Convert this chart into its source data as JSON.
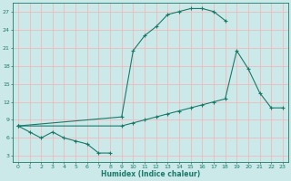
{
  "xlabel": "Humidex (Indice chaleur)",
  "xlim": [
    -0.5,
    23.5
  ],
  "ylim": [
    2.0,
    28.5
  ],
  "yticks": [
    3,
    6,
    9,
    12,
    15,
    18,
    21,
    24,
    27
  ],
  "xticks": [
    0,
    1,
    2,
    3,
    4,
    5,
    6,
    7,
    8,
    9,
    10,
    11,
    12,
    13,
    14,
    15,
    16,
    17,
    18,
    19,
    20,
    21,
    22,
    23
  ],
  "bg_color": "#cce9e9",
  "grid_color": "#f0b8b8",
  "line_color": "#1a7a6a",
  "figsize": [
    3.2,
    2.0
  ],
  "dpi": 100,
  "line1_x": [
    0,
    1,
    2,
    3,
    4,
    5,
    6,
    7,
    8
  ],
  "line1_y": [
    8,
    7,
    6,
    7,
    6,
    5.5,
    5,
    3.5,
    3.5
  ],
  "line2_x": [
    0,
    9,
    10,
    11,
    12,
    13,
    14,
    15,
    16,
    17,
    18
  ],
  "line2_y": [
    8,
    9.5,
    20.5,
    23,
    24.5,
    26.5,
    27,
    27.5,
    27.5,
    27,
    25.5
  ],
  "line3_x": [
    0,
    9,
    10,
    11,
    12,
    13,
    14,
    15,
    16,
    17,
    18,
    19,
    20,
    21,
    22,
    23
  ],
  "line3_y": [
    8,
    8,
    8.5,
    9,
    9.5,
    10,
    10.5,
    11,
    11.5,
    12,
    12.5,
    20.5,
    17.5,
    13.5,
    11,
    11
  ]
}
